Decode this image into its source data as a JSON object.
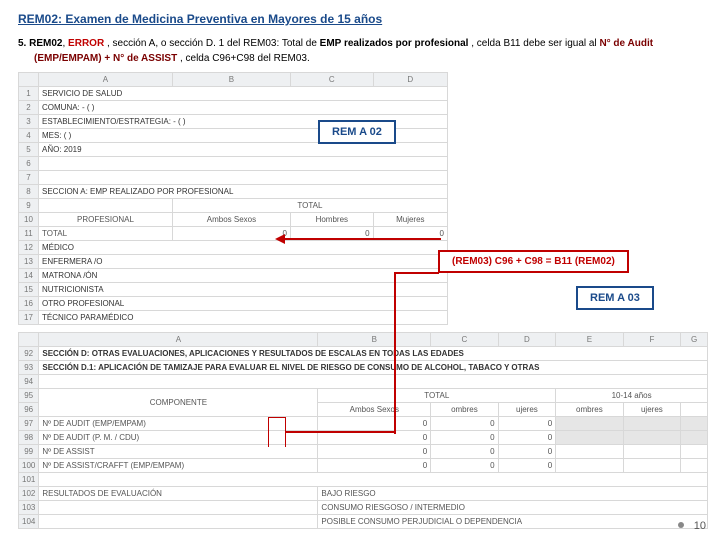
{
  "title": "REM02: Examen de Medicina Preventiva en Mayores de 15 años",
  "item_num": "5.",
  "p": {
    "a": "REM02",
    "b": "ERROR",
    "c": ", sección A, o sección D. 1 del REM03: Total de ",
    "d": "EMP realizados por profesional",
    "e": ", celda B11 debe ser igual al ",
    "f": "N° de Audit (EMP/EMPAM) + N° de ASSIST",
    "g": " , celda C96+C98 del REM03."
  },
  "callouts": {
    "rem02": "REM A 02",
    "equation": "(REM03) C96 + C98 = B11 (REM02)",
    "rem03": "REM A 03"
  },
  "topSheet": {
    "cols": [
      "",
      "A",
      "B",
      "C",
      "D"
    ],
    "rows": [
      {
        "n": "1",
        "a": "SERVICIO DE SALUD"
      },
      {
        "n": "2",
        "a": "COMUNA: - ( )"
      },
      {
        "n": "3",
        "a": "ESTABLECIMIENTO/ESTRATEGIA:  - ( )"
      },
      {
        "n": "4",
        "a": "MES: ( )"
      },
      {
        "n": "5",
        "a": "AÑO: 2019"
      },
      {
        "n": "6",
        "a": ""
      },
      {
        "n": "7",
        "a": ""
      },
      {
        "n": "8",
        "a": "SECCION A: EMP REALIZADO POR PROFESIONAL"
      },
      {
        "n": "9",
        "a": "",
        "b": "",
        "c": "TOTAL",
        "d": ""
      },
      {
        "n": "10",
        "a": "PROFESIONAL",
        "b": "Ambos Sexos",
        "c": "Hombres",
        "d": "Mujeres"
      },
      {
        "n": "11",
        "a": "TOTAL",
        "b": "0",
        "c": "0",
        "d": "0"
      },
      {
        "n": "12",
        "a": "MÉDICO"
      },
      {
        "n": "13",
        "a": "ENFERMERA /O"
      },
      {
        "n": "14",
        "a": "MATRONA /ÓN"
      },
      {
        "n": "15",
        "a": "NUTRICIONISTA"
      },
      {
        "n": "16",
        "a": "OTRO PROFESIONAL"
      },
      {
        "n": "17",
        "a": "TÉCNICO PARAMÉDICO"
      }
    ]
  },
  "botSheet": {
    "cols": [
      "",
      "A",
      "B",
      "C",
      "D",
      "E",
      "F",
      "G"
    ],
    "rows": [
      {
        "n": "92",
        "a": "SECCIÓN D: OTRAS EVALUACIONES, APLICACIONES Y RESULTADOS DE ESCALAS EN TODAS LAS EDADES",
        "span": 7,
        "bold": true
      },
      {
        "n": "93",
        "a": "SECCIÓN D.1: APLICACIÓN DE TAMIZAJE PARA EVALUAR EL NIVEL DE RIESGO DE CONSUMO DE  ALCOHOL, TABACO Y OTRAS",
        "span": 7,
        "bold": true
      },
      {
        "n": "94",
        "a": ""
      },
      {
        "n": "95",
        "a": "COMPONENTE",
        "b": "",
        "c": "TOTAL",
        "d": "",
        "e": "",
        "f": "10-14 años",
        "g": ""
      },
      {
        "n": "96",
        "a": "",
        "b": "Ambos Sexos",
        "c": "ombres",
        "d": "ujeres",
        "e": "ombres",
        "f": "ujeres",
        "g": ""
      },
      {
        "n": "97",
        "a": "Nº DE AUDIT (EMP/EMPAM)",
        "b": "0",
        "c": "0",
        "d": "0",
        "shade": true
      },
      {
        "n": "98",
        "a": "Nº DE AUDIT (P. M. / CDU)",
        "b": "0",
        "c": "0",
        "d": "0",
        "shade": true
      },
      {
        "n": "99",
        "a": "Nº DE ASSIST",
        "b": "0",
        "c": "0",
        "d": "0"
      },
      {
        "n": "100",
        "a": "Nº DE ASSIST/CRAFFT (EMP/EMPAM)",
        "b": "0",
        "c": "0",
        "d": "0"
      },
      {
        "n": "101",
        "a": ""
      },
      {
        "n": "102",
        "a": "RESULTADOS DE EVALUACIÓN",
        "b": "BAJO RIESGO"
      },
      {
        "n": "103",
        "a": "",
        "b": "CONSUMO RIESGOSO / INTERMEDIO"
      },
      {
        "n": "104",
        "a": "",
        "b": "POSIBLE CONSUMO PERJUDICIAL O DEPENDENCIA"
      }
    ]
  },
  "pageNumber": "10",
  "colors": {
    "navy": "#1a4a8a",
    "red": "#c00000"
  }
}
